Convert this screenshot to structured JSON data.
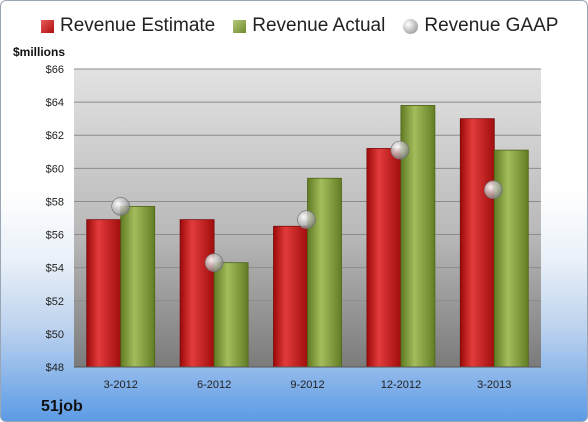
{
  "chart_data": {
    "type": "bar",
    "company": "51job",
    "ylabel": "$millions",
    "ylim": [
      48,
      66
    ],
    "ytick_step": 2,
    "ytick_prefix": "$",
    "grid": true,
    "legend_position": "top",
    "categories": [
      "3-2012",
      "6-2012",
      "9-2012",
      "12-2012",
      "3-2013"
    ],
    "series": [
      {
        "name": "Revenue Estimate",
        "kind": "bar",
        "color": "#c81e1e",
        "values": [
          56.9,
          56.9,
          56.5,
          61.2,
          63.0
        ]
      },
      {
        "name": "Revenue Actual",
        "kind": "bar",
        "color": "#86a23e",
        "values": [
          57.7,
          54.3,
          59.4,
          63.8,
          61.1
        ]
      },
      {
        "name": "Revenue GAAP",
        "kind": "marker",
        "color": "#a9a9a9",
        "values": [
          57.7,
          54.3,
          56.9,
          61.1,
          58.7
        ]
      }
    ]
  }
}
